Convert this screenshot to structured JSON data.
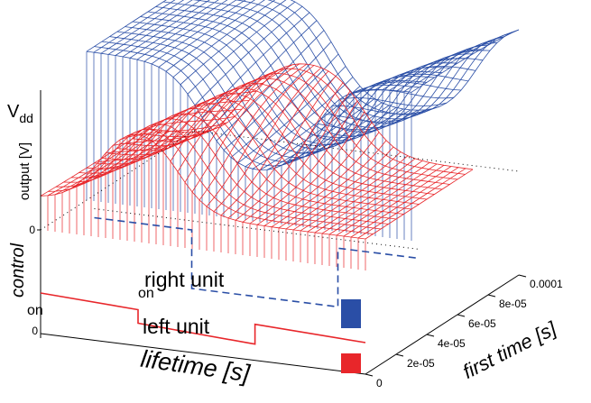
{
  "chart_data": {
    "type": "surface",
    "vdd_label": {
      "main": "V",
      "sub": "dd"
    },
    "zlabel": "output [V]",
    "control_label": "control",
    "xlabel": "lifetime [s]",
    "ylabel": "first time [s]",
    "xticks": [
      0
    ],
    "ylim": [
      0,
      0.0001
    ],
    "yticks": [
      0,
      {
        "value": 2e-05,
        "label": "2e-05"
      },
      {
        "value": 4e-05,
        "label": "4e-05"
      },
      {
        "value": 6e-05,
        "label": "6e-05"
      },
      {
        "value": 8e-05,
        "label": "8e-05"
      },
      {
        "value": 0.0001,
        "label": "0.0001"
      }
    ],
    "zticks": [
      0
    ],
    "annotations": [
      "on",
      "on"
    ],
    "series": [
      {
        "name": "right unit",
        "color": "#2a4ea6"
      },
      {
        "name": "left unit",
        "color": "#e8262a"
      }
    ]
  }
}
